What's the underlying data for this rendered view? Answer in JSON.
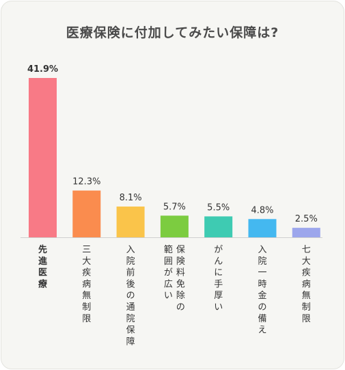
{
  "chart_data": {
    "type": "bar",
    "title": "医療保険に付加してみたい保障は?",
    "categories": [
      "先進医療",
      "三大疾病無制限",
      "入院前後の通院保障",
      "保険料免除の範囲が広い",
      "がんに手厚い",
      "入院一時金の備え",
      "七大疾病無制限"
    ],
    "values": [
      41.9,
      12.3,
      8.1,
      5.7,
      5.5,
      4.8,
      2.5
    ],
    "value_labels": [
      "41.9%",
      "12.3%",
      "8.1%",
      "5.7%",
      "5.5%",
      "4.8%",
      "2.5%"
    ],
    "colors": [
      "#f87a86",
      "#fa8c4e",
      "#fac44a",
      "#7ccc40",
      "#3ecbb2",
      "#44b8f0",
      "#9ca6ec"
    ],
    "ylim": [
      0,
      41.9
    ],
    "grid": false,
    "xlabel": "",
    "ylabel": ""
  }
}
